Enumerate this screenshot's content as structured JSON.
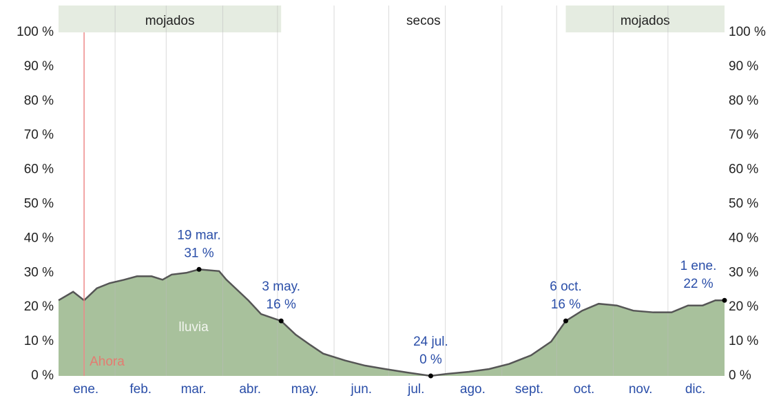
{
  "chart_data": {
    "type": "area",
    "series": [
      {
        "name": "lluvia",
        "color": "#a8c19c",
        "x": [
          1,
          9,
          15,
          22,
          29,
          37,
          44,
          52,
          58,
          63,
          71,
          78,
          89,
          93,
          99,
          105,
          112,
          123,
          131,
          139,
          146,
          158,
          169,
          180,
          192,
          205,
          214,
          226,
          237,
          248,
          260,
          271,
          279,
          288,
          297,
          307,
          316,
          327,
          337,
          346,
          354,
          361,
          366
        ],
        "values": [
          22,
          24.5,
          22,
          25.5,
          27,
          28,
          29,
          29,
          28,
          29.5,
          30,
          31,
          30.5,
          28,
          25,
          22,
          18,
          16,
          12,
          9,
          6.5,
          4.5,
          3,
          2,
          1,
          0,
          0.6,
          1.2,
          2,
          3.5,
          6,
          10,
          16,
          19,
          21,
          20.5,
          19,
          18.5,
          18.5,
          20.5,
          20.5,
          22,
          22
        ]
      }
    ],
    "xlim": [
      1,
      366
    ],
    "xticks": [
      {
        "value": 16,
        "label": "ene."
      },
      {
        "value": 46,
        "label": "feb."
      },
      {
        "value": 75,
        "label": "mar."
      },
      {
        "value": 106,
        "label": "abr."
      },
      {
        "value": 136,
        "label": "may."
      },
      {
        "value": 167,
        "label": "jun."
      },
      {
        "value": 197,
        "label": "jul."
      },
      {
        "value": 228,
        "label": "ago."
      },
      {
        "value": 259,
        "label": "sept."
      },
      {
        "value": 289,
        "label": "oct."
      },
      {
        "value": 320,
        "label": "nov."
      },
      {
        "value": 350,
        "label": "dic."
      }
    ],
    "xgrid": [
      32,
      60,
      91,
      121,
      152,
      182,
      213,
      244,
      274,
      305,
      335
    ],
    "ylim": [
      0,
      100
    ],
    "yticks": [
      {
        "value": 0,
        "label": "0 %"
      },
      {
        "value": 10,
        "label": "10 %"
      },
      {
        "value": 20,
        "label": "20 %"
      },
      {
        "value": 30,
        "label": "30 %"
      },
      {
        "value": 40,
        "label": "40 %"
      },
      {
        "value": 50,
        "label": "50 %"
      },
      {
        "value": 60,
        "label": "60 %"
      },
      {
        "value": 70,
        "label": "70 %"
      },
      {
        "value": 80,
        "label": "80 %"
      },
      {
        "value": 90,
        "label": "90 %"
      },
      {
        "value": 100,
        "label": "100 %"
      }
    ],
    "seasons": [
      {
        "label": "mojados",
        "start": 1,
        "end": 123,
        "wet": true
      },
      {
        "label": "secos",
        "start": 123,
        "end": 279,
        "wet": false
      },
      {
        "label": "mojados",
        "start": 279,
        "end": 366,
        "wet": true
      }
    ],
    "now": {
      "x": 15,
      "label": "Ahora"
    },
    "annotations": [
      {
        "x": 78,
        "value": 31,
        "label": "19 mar.",
        "value_label": "31 %"
      },
      {
        "x": 123,
        "value": 16,
        "label": "3 may.",
        "value_label": "16 %"
      },
      {
        "x": 205,
        "value": 0,
        "label": "24 jul.",
        "value_label": "0 %"
      },
      {
        "x": 279,
        "value": 16,
        "label": "6 oct.",
        "value_label": "16 %"
      },
      {
        "x": 366,
        "value": 22,
        "label": "1 ene.",
        "value_label": "22 %"
      }
    ]
  }
}
